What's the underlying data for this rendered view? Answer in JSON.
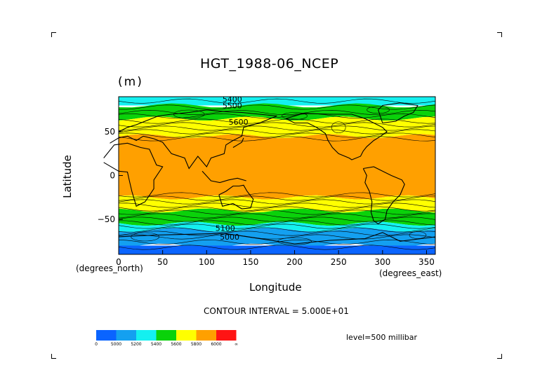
{
  "chart_data": {
    "type": "heatmap",
    "title": "HGT_1988-06_NCEP",
    "units": "(m)",
    "xlabel": "Longitude",
    "ylabel": "Latitude",
    "xlim": [
      0,
      360
    ],
    "ylim": [
      -90,
      90
    ],
    "x_ticks": [
      0,
      50,
      100,
      150,
      200,
      250,
      300,
      350
    ],
    "y_ticks": [
      50,
      0,
      -50
    ],
    "x_tick_labels": [
      "0",
      "50",
      "100",
      "150",
      "200",
      "250",
      "300",
      "350"
    ],
    "y_tick_labels": [
      "50",
      "0",
      "−50"
    ],
    "x_unit_note": "(degrees_east)",
    "y_unit_note": "(degrees_north)",
    "contour_interval_text": "CONTOUR INTERVAL = 5.000E+01",
    "level_text": "level=500 millibar",
    "contour_labels": [
      "5400",
      "5500",
      "5600",
      "5100",
      "5000"
    ],
    "colorbar": {
      "labels": [
        "0",
        "5000",
        "5200",
        "5400",
        "5600",
        "5800",
        "6000",
        "∞"
      ],
      "colors": [
        "#0a64ff",
        "#14a0f0",
        "#14f0f0",
        "#0ad20a",
        "#ffff00",
        "#ffa000",
        "#ff1414"
      ]
    },
    "bands": [
      {
        "lat_top": 90,
        "lat_bottom": 80,
        "color": "#14f0f0"
      },
      {
        "lat_top": 80,
        "lat_bottom": 65,
        "color": "#0ad20a"
      },
      {
        "lat_top": 65,
        "lat_bottom": 45,
        "color": "#ffff00"
      },
      {
        "lat_top": 45,
        "lat_bottom": -25,
        "color": "#ffa000"
      },
      {
        "lat_top": -25,
        "lat_bottom": -40,
        "color": "#ffff00"
      },
      {
        "lat_top": -40,
        "lat_bottom": -55,
        "color": "#0ad20a"
      },
      {
        "lat_top": -55,
        "lat_bottom": -62,
        "color": "#14f0f0"
      },
      {
        "lat_top": -62,
        "lat_bottom": -80,
        "color": "#14a0f0"
      },
      {
        "lat_top": -80,
        "lat_bottom": -90,
        "color": "#0a64ff"
      }
    ]
  }
}
